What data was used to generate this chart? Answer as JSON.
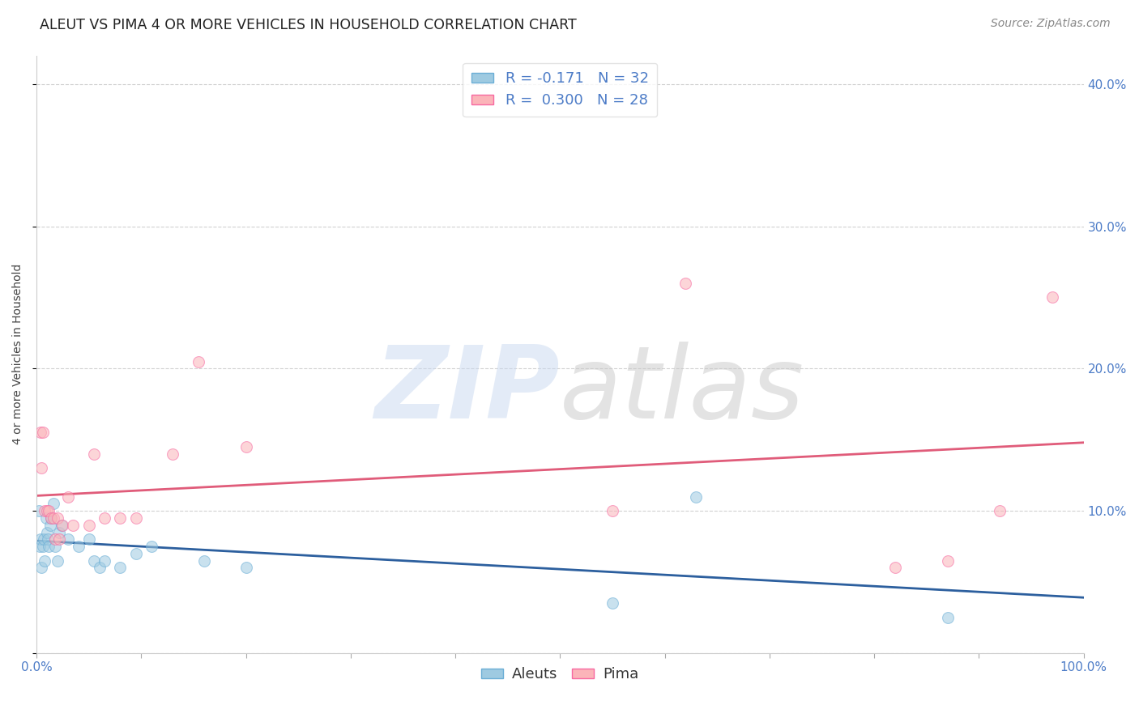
{
  "title": "ALEUT VS PIMA 4 OR MORE VEHICLES IN HOUSEHOLD CORRELATION CHART",
  "source": "Source: ZipAtlas.com",
  "ylabel": "4 or more Vehicles in Household",
  "xlim": [
    0,
    1.0
  ],
  "ylim": [
    0,
    0.42
  ],
  "xtick_vals": [
    0.0,
    0.1,
    0.2,
    0.3,
    0.4,
    0.5,
    0.6,
    0.7,
    0.8,
    0.9,
    1.0
  ],
  "xticklabels": [
    "0.0%",
    "",
    "",
    "",
    "",
    "",
    "",
    "",
    "",
    "",
    "100.0%"
  ],
  "ytick_vals": [
    0.0,
    0.1,
    0.2,
    0.3,
    0.4
  ],
  "yticklabels_right": [
    "",
    "10.0%",
    "20.0%",
    "30.0%",
    "40.0%"
  ],
  "watermark_zip": "ZIP",
  "watermark_atlas": "atlas",
  "aleut_color": "#9ecae1",
  "aleut_edge_color": "#6baed6",
  "pima_color": "#fbb4b9",
  "pima_edge_color": "#f768a1",
  "aleut_line_color": "#2c5f9e",
  "pima_line_color": "#e05c7a",
  "aleut_R": -0.171,
  "aleut_N": 32,
  "pima_R": 0.3,
  "pima_N": 28,
  "background_color": "#ffffff",
  "grid_color": "#cccccc",
  "tick_color": "#4d7cc7",
  "aleut_x": [
    0.002,
    0.003,
    0.004,
    0.005,
    0.006,
    0.007,
    0.008,
    0.009,
    0.01,
    0.011,
    0.012,
    0.013,
    0.014,
    0.016,
    0.018,
    0.02,
    0.022,
    0.024,
    0.03,
    0.04,
    0.05,
    0.055,
    0.06,
    0.065,
    0.08,
    0.095,
    0.11,
    0.16,
    0.2,
    0.55,
    0.63,
    0.87
  ],
  "aleut_y": [
    0.1,
    0.075,
    0.08,
    0.06,
    0.075,
    0.08,
    0.065,
    0.095,
    0.085,
    0.08,
    0.075,
    0.09,
    0.095,
    0.105,
    0.075,
    0.065,
    0.085,
    0.09,
    0.08,
    0.075,
    0.08,
    0.065,
    0.06,
    0.065,
    0.06,
    0.07,
    0.075,
    0.065,
    0.06,
    0.035,
    0.11,
    0.025
  ],
  "pima_x": [
    0.004,
    0.006,
    0.008,
    0.01,
    0.012,
    0.014,
    0.016,
    0.018,
    0.02,
    0.022,
    0.025,
    0.03,
    0.035,
    0.05,
    0.055,
    0.065,
    0.08,
    0.095,
    0.13,
    0.155,
    0.2,
    0.55,
    0.62,
    0.82,
    0.87,
    0.92,
    0.97,
    0.005
  ],
  "pima_y": [
    0.155,
    0.155,
    0.1,
    0.1,
    0.1,
    0.095,
    0.095,
    0.08,
    0.095,
    0.08,
    0.09,
    0.11,
    0.09,
    0.09,
    0.14,
    0.095,
    0.095,
    0.095,
    0.14,
    0.205,
    0.145,
    0.1,
    0.26,
    0.06,
    0.065,
    0.1,
    0.25,
    0.13
  ],
  "marker_size": 100,
  "marker_alpha": 0.55,
  "title_fontsize": 12.5,
  "axis_label_fontsize": 10,
  "tick_fontsize": 11,
  "legend_fontsize": 13,
  "source_fontsize": 10
}
